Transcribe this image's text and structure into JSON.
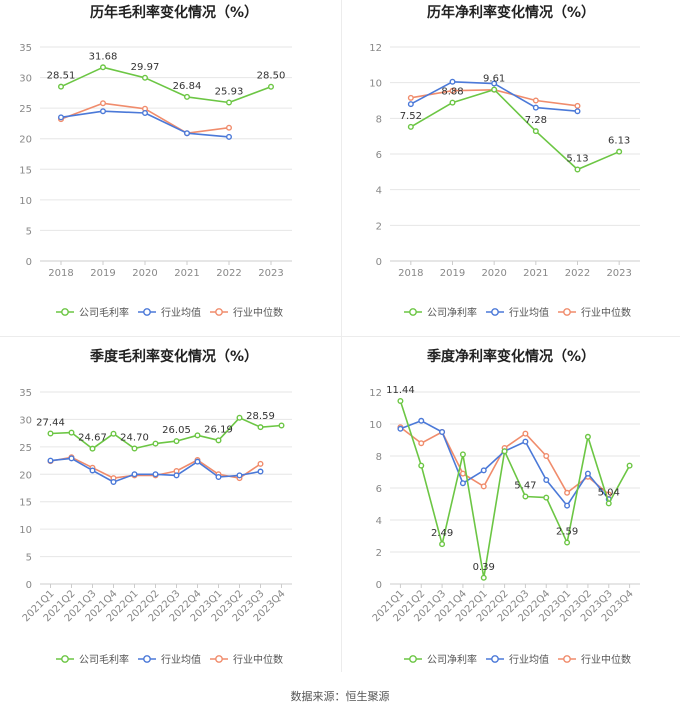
{
  "colors": {
    "company": "#6cc644",
    "avg": "#4b79d8",
    "median": "#f08c6c",
    "grid": "#e6e6e6",
    "axis": "#cccccc",
    "tick": "#888888",
    "label": "#333333"
  },
  "legend_labels": {
    "gross": "公司毛利率",
    "net": "公司净利率",
    "avg": "行业均值",
    "median": "行业中位数"
  },
  "source": "数据来源：恒生聚源",
  "chart_data": [
    {
      "type": "line",
      "title": "历年毛利率变化情况（%）",
      "categories": [
        "2018",
        "2019",
        "2020",
        "2021",
        "2022",
        "2023"
      ],
      "ylim": [
        0,
        35
      ],
      "yticks": [
        0,
        5,
        10,
        15,
        20,
        25,
        30,
        35
      ],
      "grid": true,
      "legend": "bottom",
      "series": [
        {
          "name": "公司毛利率",
          "role": "company",
          "values": [
            28.51,
            31.68,
            29.97,
            26.84,
            25.93,
            28.5
          ]
        },
        {
          "name": "行业均值",
          "role": "avg",
          "values": [
            23.5,
            24.5,
            24.2,
            20.9,
            20.3,
            null
          ]
        },
        {
          "name": "行业中位数",
          "role": "median",
          "values": [
            23.2,
            25.8,
            24.9,
            20.9,
            21.8,
            null
          ]
        }
      ],
      "labels": [
        "28.51",
        "31.68",
        "29.97",
        "26.84",
        "25.93",
        "28.50"
      ]
    },
    {
      "type": "line",
      "title": "历年净利率变化情况（%）",
      "categories": [
        "2018",
        "2019",
        "2020",
        "2021",
        "2022",
        "2023"
      ],
      "ylim": [
        0,
        12
      ],
      "yticks": [
        0,
        2,
        4,
        6,
        8,
        10,
        12
      ],
      "grid": true,
      "legend": "bottom",
      "series": [
        {
          "name": "公司净利率",
          "role": "company",
          "values": [
            7.52,
            8.88,
            9.61,
            7.28,
            5.13,
            6.13
          ]
        },
        {
          "name": "行业均值",
          "role": "avg",
          "values": [
            8.8,
            10.05,
            9.95,
            8.6,
            8.4,
            null
          ]
        },
        {
          "name": "行业中位数",
          "role": "median",
          "values": [
            9.15,
            9.55,
            9.6,
            9.0,
            8.7,
            null
          ]
        }
      ],
      "labels": [
        "7.52",
        "8.88",
        "9.61",
        "7.28",
        "5.13",
        "6.13"
      ]
    },
    {
      "type": "line",
      "title": "季度毛利率变化情况（%）",
      "categories": [
        "2021Q1",
        "2021Q2",
        "2021Q3",
        "2021Q4",
        "2022Q1",
        "2022Q2",
        "2022Q3",
        "2022Q4",
        "2023Q1",
        "2023Q2",
        "2023Q3",
        "2023Q4"
      ],
      "ylim": [
        0,
        35
      ],
      "yticks": [
        0,
        5,
        10,
        15,
        20,
        25,
        30,
        35
      ],
      "grid": true,
      "legend": "bottom",
      "series": [
        {
          "name": "公司毛利率",
          "role": "company",
          "values": [
            27.44,
            27.6,
            24.67,
            27.4,
            24.7,
            25.6,
            26.05,
            27.1,
            26.19,
            30.3,
            28.59,
            28.9
          ]
        },
        {
          "name": "行业均值",
          "role": "avg",
          "values": [
            22.5,
            22.9,
            20.7,
            18.6,
            20.0,
            20.0,
            19.8,
            22.3,
            19.5,
            19.8,
            20.5,
            null
          ]
        },
        {
          "name": "行业中位数",
          "role": "median",
          "values": [
            22.4,
            23.1,
            21.2,
            19.3,
            19.8,
            19.8,
            20.6,
            22.6,
            20.0,
            19.3,
            21.9,
            null
          ]
        }
      ],
      "labels": [
        "27.44",
        "",
        "24.67",
        "",
        "24.70",
        "",
        "26.05",
        "",
        "26.19",
        "",
        "28.59",
        ""
      ]
    },
    {
      "type": "line",
      "title": "季度净利率变化情况（%）",
      "categories": [
        "2021Q1",
        "2021Q2",
        "2021Q3",
        "2021Q4",
        "2022Q1",
        "2022Q2",
        "2022Q3",
        "2022Q4",
        "2023Q1",
        "2023Q2",
        "2023Q3",
        "2023Q4"
      ],
      "ylim": [
        0,
        12
      ],
      "yticks": [
        0,
        2,
        4,
        6,
        8,
        10,
        12
      ],
      "grid": true,
      "legend": "bottom",
      "series": [
        {
          "name": "公司净利率",
          "role": "company",
          "values": [
            11.44,
            7.4,
            2.49,
            8.1,
            0.39,
            8.3,
            5.47,
            5.4,
            2.59,
            9.2,
            5.04,
            7.4
          ]
        },
        {
          "name": "行业均值",
          "role": "avg",
          "values": [
            9.7,
            10.2,
            9.5,
            6.3,
            7.1,
            8.3,
            8.9,
            6.5,
            4.9,
            6.9,
            5.3,
            null
          ]
        },
        {
          "name": "行业中位数",
          "role": "median",
          "values": [
            9.8,
            8.8,
            9.5,
            6.9,
            6.1,
            8.5,
            9.4,
            8.0,
            5.7,
            6.7,
            5.6,
            null
          ]
        }
      ],
      "labels": [
        "11.44",
        "",
        "2.49",
        "",
        "0.39",
        "",
        "5.47",
        "",
        "2.59",
        "",
        "5.04",
        ""
      ]
    }
  ]
}
